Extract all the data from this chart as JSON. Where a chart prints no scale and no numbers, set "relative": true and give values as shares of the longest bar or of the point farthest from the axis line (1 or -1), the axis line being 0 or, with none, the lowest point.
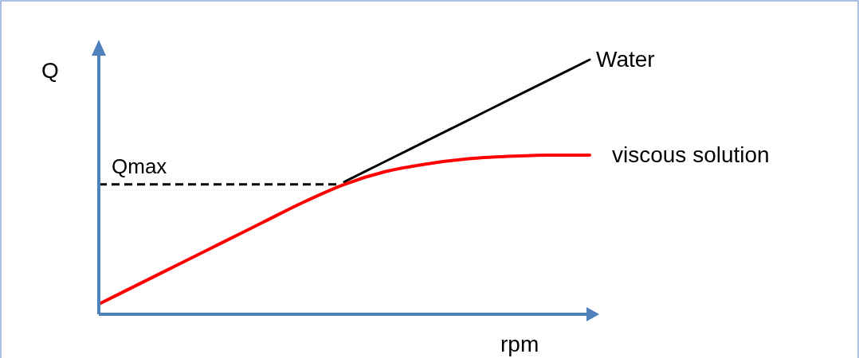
{
  "chart_data": {
    "type": "line",
    "relative": true,
    "xlabel": "rpm",
    "ylabel": "Q",
    "categories": [
      null,
      null,
      null,
      null,
      null,
      null,
      null,
      null,
      null,
      null,
      null,
      null,
      null
    ],
    "series": [
      {
        "name": "Water",
        "color": "#000000",
        "values": [
          null,
          null,
          null,
          null,
          null,
          null,
          0.52,
          0.6,
          0.68,
          0.76,
          0.84,
          0.92,
          1
        ]
      },
      {
        "name": "viscous solution",
        "color": "#ff0000",
        "values": [
          0.04,
          0.12,
          0.2,
          0.28,
          0.36,
          0.44,
          0.51,
          0.56,
          0.59,
          0.61,
          0.62,
          0.625,
          0.625
        ]
      }
    ],
    "ref_lines": [
      {
        "axis": "y",
        "value": 0.51,
        "label": "Qmax",
        "color": "#000000",
        "line_style": "dashed"
      }
    ]
  }
}
